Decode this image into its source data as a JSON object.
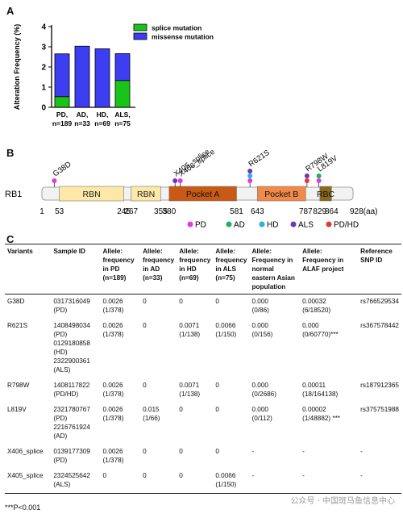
{
  "panel_labels": {
    "a": "A",
    "b": "B",
    "c": "C"
  },
  "chart_data": {
    "type": "bar",
    "stacked": true,
    "ylabel": "Alteration Frequency (%)",
    "ylim": [
      0,
      4
    ],
    "yticks": [
      "0",
      "1",
      "2",
      "3",
      "4"
    ],
    "categories": [
      {
        "line1": "PD,",
        "line2": "n=189"
      },
      {
        "line1": "AD,",
        "line2": "n=33"
      },
      {
        "line1": "HD,",
        "line2": "n=69"
      },
      {
        "line1": "ALS,",
        "line2": "n=75"
      }
    ],
    "series": [
      {
        "name": "splice mutation",
        "color": "#18c418",
        "values": [
          0.53,
          0,
          0,
          1.33
        ]
      },
      {
        "name": "missense mutation",
        "color": "#3d3df2",
        "values": [
          2.12,
          3.03,
          2.9,
          1.33
        ]
      }
    ],
    "legend_position": "top-right"
  },
  "diagram": {
    "protein": "RB1",
    "length": 928,
    "unit": "(aa)",
    "tick_labels": [
      "1",
      "53",
      "245",
      "267",
      "355",
      "380",
      "581",
      "643",
      "787",
      "829",
      "864",
      "928(aa)"
    ],
    "domains": [
      {
        "label": "RBN",
        "start": 53,
        "end": 245,
        "color": "#fde8a8"
      },
      {
        "label": "RBN",
        "start": 267,
        "end": 355,
        "color": "#fde8a8"
      },
      {
        "label": "Pocket A",
        "start": 380,
        "end": 581,
        "color": "#c85a16"
      },
      {
        "label": "Pocket B",
        "start": 643,
        "end": 787,
        "color": "#f08a4a"
      },
      {
        "label": "RBC",
        "start": 829,
        "end": 864,
        "color": "#8a6a1a"
      }
    ],
    "mutations": [
      {
        "label": "G38D",
        "pos": 38,
        "dots": [
          "#e23ae2"
        ]
      },
      {
        "label": "X405_splice",
        "pos": 405,
        "dots": [
          "#6a3ab0"
        ]
      },
      {
        "label": "X406_splice",
        "pos": 406,
        "dots": [
          "#e23ae2"
        ]
      },
      {
        "label": "R621S",
        "pos": 621,
        "dots": [
          "#6a3ab0",
          "#2ab0e2",
          "#e23ae2"
        ]
      },
      {
        "label": "R798W",
        "pos": 798,
        "dots": [
          "#6a3ab0",
          "#e23a3a"
        ]
      },
      {
        "label": "L819V",
        "pos": 819,
        "dots": [
          "#22b05a",
          "#e23ae2"
        ]
      }
    ],
    "legend": [
      {
        "label": "PD",
        "color": "#e23ae2"
      },
      {
        "label": "AD",
        "color": "#22b05a"
      },
      {
        "label": "HD",
        "color": "#2ab0e2"
      },
      {
        "label": "ALS",
        "color": "#6a3ab0"
      },
      {
        "label": "PD/HD",
        "color": "#e23a3a"
      }
    ]
  },
  "table": {
    "headers": [
      "Variants",
      "Sample ID",
      "Allele: frequency in PD (n=189)",
      "Allele: frequency in AD (n=33)",
      "Allele: frequency in HD (n=69)",
      "Allele: frequency in ALS (n=75)",
      "Allele: Frequency in normal eastern Asian population",
      "Allele: Frequency in ALAF project",
      "Reference SNP ID"
    ],
    "rows": [
      [
        "G38D",
        "0317316049\n(PD)",
        "0.0026\n(1/378)",
        "0",
        "0",
        "0",
        "0.000\n(0/86)",
        "0.00032\n(6/18520)",
        "rs766529534"
      ],
      [
        "R621S",
        "1408498034\n(PD)\n0129180858\n(HD)\n2322900361\n(ALS)",
        "0.0026\n(1/378)",
        "0",
        "0.0071\n(1/138)",
        "0.0066\n(1/150)",
        "0.000\n(0/156)",
        "0.000\n(0/60770)***",
        "rs367578442"
      ],
      [
        "R798W",
        "1408117822\n(PD/HD)",
        "0.0026\n(1/378)",
        "0",
        "0.0071\n(1/138)",
        "0",
        "0.000\n(0/2686)",
        "0.00011\n(18/164138)",
        "rs187912365"
      ],
      [
        "L819V",
        "2321780767\n(PD)\n2216761924\n(AD)",
        "0.0026\n(1/378)",
        "0.015\n(1/66)",
        "0",
        "0",
        "0.000\n(0/112)",
        "0.00002\n(1/48882) ***",
        "rs375751988"
      ],
      [
        "X406_splice",
        "0139177309\n(PD)",
        "0.0026\n(1/378)",
        "0",
        "0",
        "0",
        "-",
        "-",
        "-"
      ],
      [
        "X405_splice",
        "2324525642\n(ALS)",
        "0",
        "0",
        "0",
        "0.0066\n(1/150)",
        "-",
        "-",
        "-"
      ]
    ]
  },
  "footnote": "***P<0.001",
  "watermark": "公众号 · 中国斑马鱼信息中心"
}
